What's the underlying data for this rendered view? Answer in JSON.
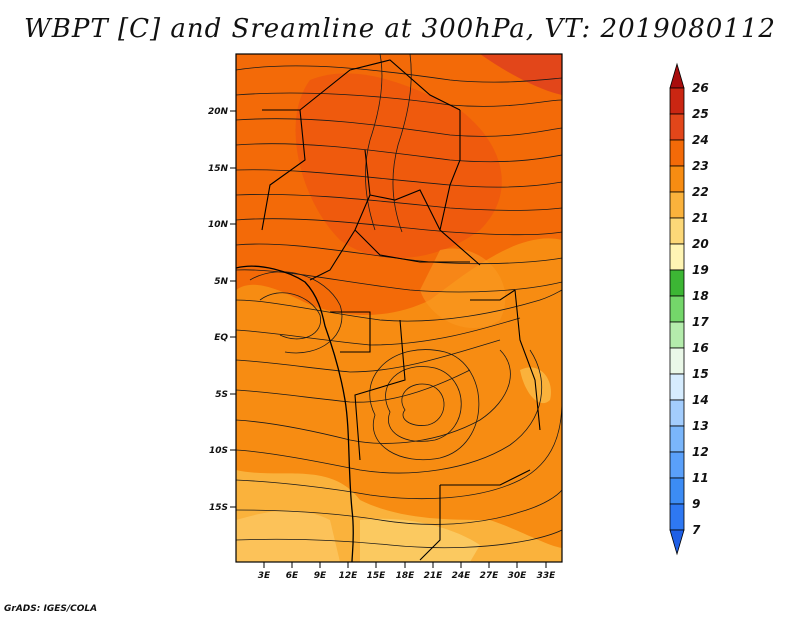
{
  "title": "WBPT [C] and Sreamline at 300hPa, VT: 2019080112",
  "credit": "GrADS: IGES/COLA",
  "map": {
    "lon_ticks": [
      "3E",
      "6E",
      "9E",
      "12E",
      "15E",
      "18E",
      "21E",
      "24E",
      "27E",
      "30E",
      "33E"
    ],
    "lat_ticks": [
      "20N",
      "15N",
      "10N",
      "5N",
      "EQ",
      "5S",
      "10S",
      "15S"
    ]
  },
  "colorbar": {
    "labels": [
      "7",
      "9",
      "11",
      "12",
      "13",
      "14",
      "15",
      "16",
      "17",
      "18",
      "19",
      "20",
      "21",
      "22",
      "23",
      "24",
      "25",
      "26"
    ],
    "colors": [
      "#1e5fe6",
      "#2e78f2",
      "#3c8cf5",
      "#5aa0fa",
      "#7ab6fb",
      "#a3cdfd",
      "#d6ecfe",
      "#eaf8e8",
      "#b4ecac",
      "#74d66a",
      "#3cb634",
      "#fff5b4",
      "#fcd878",
      "#fab23c",
      "#f78c12",
      "#f36a08",
      "#e2461a",
      "#ca2612",
      "#a80d0d"
    ]
  }
}
